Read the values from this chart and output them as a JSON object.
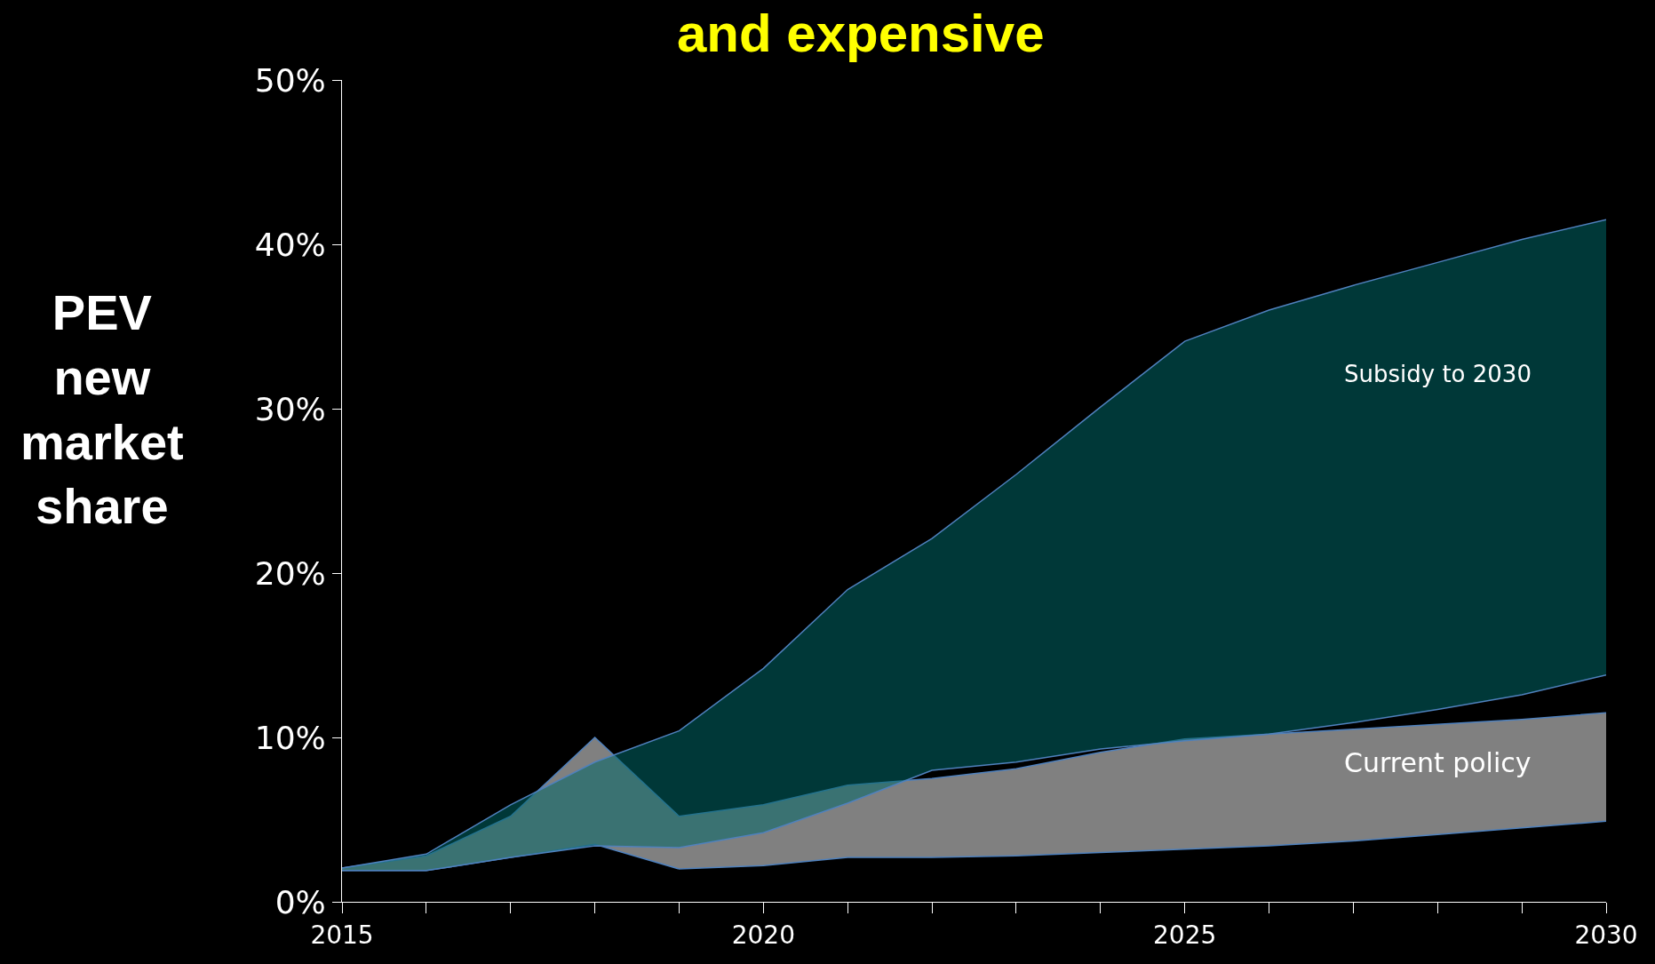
{
  "chart_data": {
    "type": "area",
    "title": "and expensive",
    "ylabel": "PEV new market share",
    "x": [
      2015,
      2016,
      2017,
      2018,
      2019,
      2020,
      2021,
      2022,
      2023,
      2024,
      2025,
      2026,
      2027,
      2028,
      2029,
      2030
    ],
    "series": [
      {
        "type": "line",
        "color": "#4f81bd",
        "values": [
          1.9,
          1.9,
          2.7,
          3.5,
          2.0,
          2.2,
          2.7,
          2.7,
          2.8,
          3.0,
          3.2,
          3.4,
          3.7,
          4.1,
          4.5,
          4.9
        ]
      },
      {
        "name": "Current policy",
        "color": "#808080",
        "values": [
          2.05,
          2.8,
          5.2,
          10.0,
          5.2,
          5.9,
          7.1,
          7.5,
          8.1,
          9.1,
          9.9,
          10.2,
          10.5,
          10.8,
          11.1,
          11.5
        ]
      },
      {
        "type": "line",
        "color": "#4f81bd",
        "values": [
          1.9,
          1.9,
          2.7,
          3.4,
          3.3,
          4.2,
          6.0,
          8.0,
          8.5,
          9.3,
          9.8,
          10.2,
          10.9,
          11.7,
          12.6,
          13.8
        ]
      },
      {
        "name": "Subsidy to 2030",
        "color": "#006666",
        "values": [
          2.05,
          2.9,
          5.9,
          8.5,
          10.4,
          14.2,
          19.0,
          22.1,
          26.0,
          30.1,
          34.1,
          36.0,
          37.5,
          38.9,
          40.3,
          41.5
        ]
      }
    ],
    "xlim": [
      2015,
      2030
    ],
    "xticks": [
      2015,
      {
        "value": 2016,
        "label": null
      },
      {
        "value": 2017,
        "label": null
      },
      {
        "value": 2018,
        "label": null
      },
      {
        "value": 2019,
        "label": null
      },
      2020,
      {
        "value": 2021,
        "label": null
      },
      {
        "value": 2022,
        "label": null
      },
      {
        "value": 2023,
        "label": null
      },
      {
        "value": 2024,
        "label": null
      },
      2025,
      {
        "value": 2026,
        "label": null
      },
      {
        "value": 2027,
        "label": null
      },
      {
        "value": 2028,
        "label": null
      },
      {
        "value": 2029,
        "label": null
      },
      2030
    ],
    "ylim": [
      0,
      50
    ],
    "yticks": [
      {
        "value": 0,
        "label": "0%"
      },
      {
        "value": 10,
        "label": "10%"
      },
      {
        "value": 20,
        "label": "20%"
      },
      {
        "value": 30,
        "label": "30%"
      },
      {
        "value": 40,
        "label": "40%"
      },
      {
        "value": 50,
        "label": "50%"
      }
    ],
    "grid": false,
    "legend": false
  }
}
